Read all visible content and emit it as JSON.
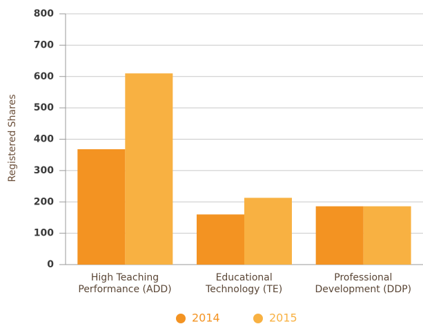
{
  "chart_data": {
    "type": "bar",
    "y_label": "Registered Shares",
    "categories": [
      "High Teaching\nPerformance (ADD)",
      "Educational\nTechnology (TE)",
      "Professional\nDevelopment (DDP)"
    ],
    "series": [
      {
        "name": "2014",
        "color": "#f39322",
        "values": [
          368,
          160,
          186
        ]
      },
      {
        "name": "2015",
        "color": "#f8b142",
        "values": [
          610,
          213,
          186
        ]
      }
    ],
    "ylim": [
      0,
      800
    ],
    "yticks": [
      0,
      100,
      200,
      300,
      400,
      500,
      600,
      700,
      800
    ],
    "grid": true
  }
}
